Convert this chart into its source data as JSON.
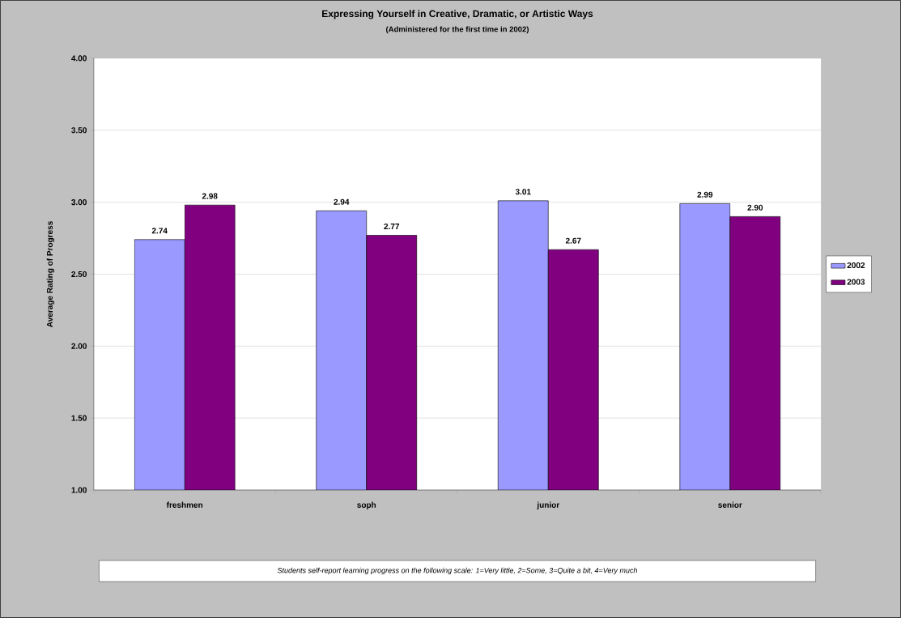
{
  "chart_data": {
    "type": "bar",
    "title": "Expressing Yourself in Creative, Dramatic, or Artistic Ways",
    "subtitle": "(Administered for the first time in 2002)",
    "ylabel": "Average Rating of Progress",
    "categories": [
      "freshmen",
      "soph",
      "junior",
      "senior"
    ],
    "series": [
      {
        "name": "2002",
        "color": "#9999ff",
        "values": [
          2.74,
          2.94,
          3.01,
          2.99
        ],
        "value_labels": [
          "2.74",
          "2.94",
          "3.01",
          "2.99"
        ]
      },
      {
        "name": "2003",
        "color": "#800080",
        "values": [
          2.98,
          2.77,
          2.67,
          2.9
        ],
        "value_labels": [
          "2.98",
          "2.77",
          "2.67",
          "2.90"
        ]
      }
    ],
    "ylim": [
      1,
      4
    ],
    "yticks": [
      {
        "value": 1,
        "label": "1.00"
      },
      {
        "value": 1.5,
        "label": "1.50"
      },
      {
        "value": 2,
        "label": "2.00"
      },
      {
        "value": 2.5,
        "label": "2.50"
      },
      {
        "value": 3,
        "label": "3.00"
      },
      {
        "value": 3.5,
        "label": "3.50"
      },
      {
        "value": 4,
        "label": "4.00"
      }
    ],
    "grid": "y",
    "legend": "right",
    "annotations": [
      "Students self-report learning progress on the following scale:  1=Very little, 2=Some, 3=Quite a bit, 4=Very much"
    ]
  }
}
